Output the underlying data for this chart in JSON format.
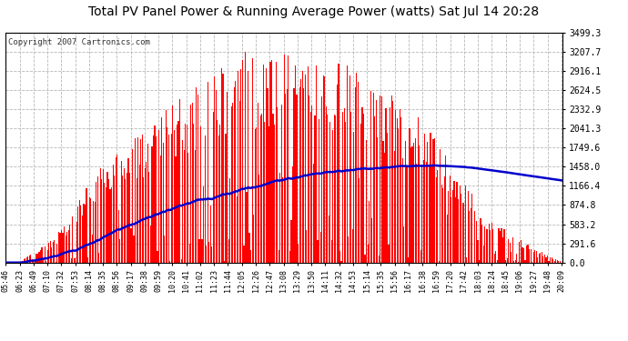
{
  "title": "Total PV Panel Power & Running Average Power (watts) Sat Jul 14 20:28",
  "copyright": "Copyright 2007 Cartronics.com",
  "ymax": 3499.3,
  "yticks": [
    0.0,
    291.6,
    583.2,
    874.8,
    1166.4,
    1458.0,
    1749.6,
    2041.3,
    2332.9,
    2624.5,
    2916.1,
    3207.7,
    3499.3
  ],
  "background_color": "#ffffff",
  "bar_color": "#ff0000",
  "avg_line_color": "#0000cc",
  "grid_color": "#b0b0b0",
  "title_color": "#000000",
  "x_labels": [
    "05:46",
    "06:23",
    "06:49",
    "07:10",
    "07:32",
    "07:53",
    "08:14",
    "08:35",
    "08:56",
    "09:17",
    "09:38",
    "09:59",
    "10:20",
    "10:41",
    "11:02",
    "11:23",
    "11:44",
    "12:05",
    "12:26",
    "12:47",
    "13:08",
    "13:29",
    "13:50",
    "14:11",
    "14:32",
    "14:53",
    "15:14",
    "15:35",
    "15:56",
    "16:17",
    "16:38",
    "16:59",
    "17:20",
    "17:42",
    "18:03",
    "18:24",
    "18:45",
    "19:06",
    "19:27",
    "19:48",
    "20:09"
  ]
}
